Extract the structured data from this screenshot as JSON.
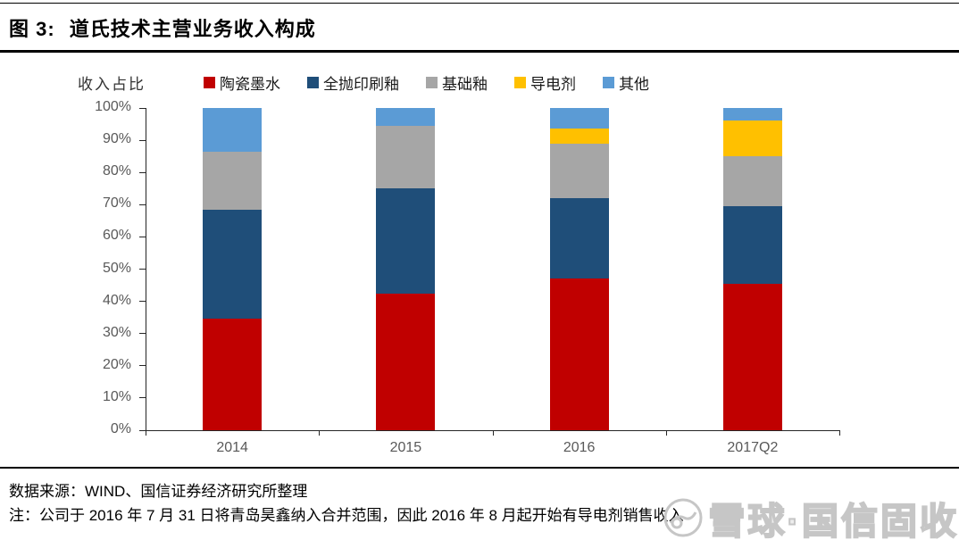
{
  "figure": {
    "title_prefix": "图 3:",
    "title": "道氏技术主营业务收入构成"
  },
  "chart_data": {
    "type": "bar",
    "stacked": true,
    "title": "道氏技术主营业务收入构成",
    "ylabel": "收入占比",
    "xlabel": "",
    "categories": [
      "2014",
      "2015",
      "2016",
      "2017Q2"
    ],
    "series": [
      {
        "name": "陶瓷墨水",
        "color": "#c00000",
        "values": [
          34.5,
          42.5,
          47.0,
          45.5
        ]
      },
      {
        "name": "全抛印刷釉",
        "color": "#1f4e79",
        "values": [
          34.0,
          32.5,
          25.0,
          24.0
        ]
      },
      {
        "name": "基础釉",
        "color": "#a6a6a6",
        "values": [
          18.0,
          19.5,
          17.0,
          15.5
        ]
      },
      {
        "name": "导电剂",
        "color": "#ffc000",
        "values": [
          0.0,
          0.0,
          4.5,
          11.0
        ]
      },
      {
        "name": "其他",
        "color": "#5b9bd5",
        "values": [
          13.5,
          5.5,
          6.5,
          4.0
        ]
      }
    ],
    "y_ticks": [
      "0%",
      "10%",
      "20%",
      "30%",
      "40%",
      "50%",
      "60%",
      "70%",
      "80%",
      "90%",
      "100%"
    ],
    "ylim": [
      0,
      100
    ],
    "unit": "percent",
    "grid": false,
    "legend_position": "top"
  },
  "footer": {
    "source": "数据来源：WIND、国信证券经济研究所整理",
    "note": "注：公司于 2016 年 7 月 31 日将青岛昊鑫纳入合并范围，因此 2016 年 8 月起开始有导电剂销售收入"
  },
  "watermark": {
    "logo": "xueqiu-snowball-logo",
    "text": "雪球·国信固收"
  }
}
